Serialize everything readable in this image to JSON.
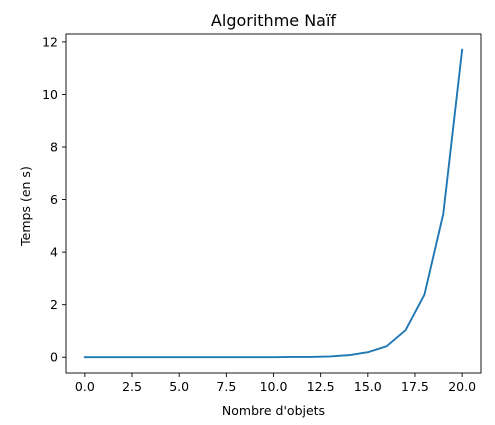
{
  "chart_data": {
    "type": "line",
    "title": "Algorithme Naïf",
    "xlabel": "Nombre d'objets",
    "ylabel": "Temps (en s)",
    "xlim": [
      -1,
      21
    ],
    "ylim": [
      -0.6,
      12.3
    ],
    "xticks": [
      0,
      2.5,
      5,
      7.5,
      10,
      12.5,
      15,
      17.5,
      20
    ],
    "xtick_labels": [
      "0.0",
      "2.5",
      "5.0",
      "7.5",
      "10.0",
      "12.5",
      "15.0",
      "17.5",
      "20.0"
    ],
    "yticks": [
      0,
      2,
      4,
      6,
      8,
      10,
      12
    ],
    "ytick_labels": [
      "0",
      "2",
      "4",
      "6",
      "8",
      "10",
      "12"
    ],
    "grid": false,
    "series": [
      {
        "color": "#1f77b4",
        "x": [
          0,
          1,
          2,
          3,
          4,
          5,
          6,
          7,
          8,
          9,
          10,
          11,
          12,
          13,
          14,
          15,
          16,
          17,
          18,
          19,
          20
        ],
        "y": [
          0.0,
          0.0,
          0.0,
          0.0,
          0.0,
          0.0,
          0.0,
          0.0,
          0.0,
          0.0,
          0.0,
          0.01,
          0.01,
          0.03,
          0.08,
          0.19,
          0.42,
          1.03,
          2.38,
          5.45,
          11.7
        ]
      }
    ]
  }
}
